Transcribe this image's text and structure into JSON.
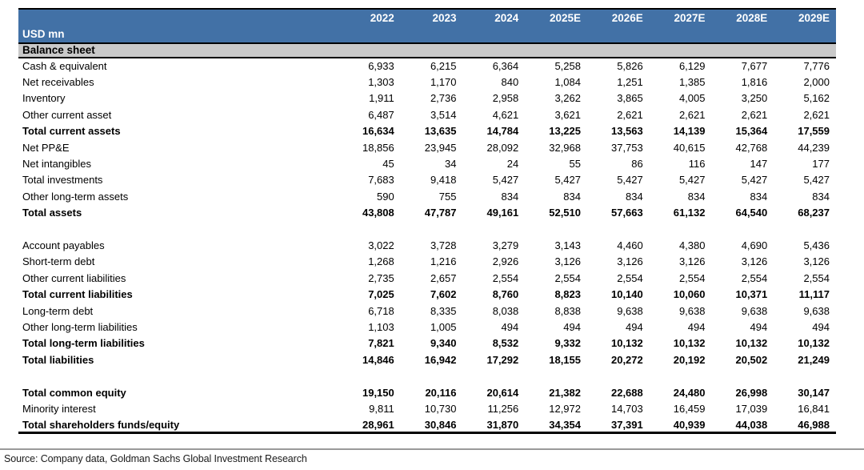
{
  "table": {
    "unit_label": "USD mn",
    "columns": [
      "2022",
      "2023",
      "2024",
      "2025E",
      "2026E",
      "2027E",
      "2028E",
      "2029E"
    ],
    "section_header": "Balance sheet",
    "rows": [
      {
        "label": "Cash & equivalent",
        "bold": false,
        "values": [
          "6,933",
          "6,215",
          "6,364",
          "5,258",
          "5,826",
          "6,129",
          "7,677",
          "7,776"
        ]
      },
      {
        "label": "Net receivables",
        "bold": false,
        "values": [
          "1,303",
          "1,170",
          "840",
          "1,084",
          "1,251",
          "1,385",
          "1,816",
          "2,000"
        ]
      },
      {
        "label": "Inventory",
        "bold": false,
        "values": [
          "1,911",
          "2,736",
          "2,958",
          "3,262",
          "3,865",
          "4,005",
          "3,250",
          "5,162"
        ]
      },
      {
        "label": "Other current asset",
        "bold": false,
        "values": [
          "6,487",
          "3,514",
          "4,621",
          "3,621",
          "2,621",
          "2,621",
          "2,621",
          "2,621"
        ]
      },
      {
        "label": "Total current assets",
        "bold": true,
        "values": [
          "16,634",
          "13,635",
          "14,784",
          "13,225",
          "13,563",
          "14,139",
          "15,364",
          "17,559"
        ]
      },
      {
        "label": "Net PP&E",
        "bold": false,
        "values": [
          "18,856",
          "23,945",
          "28,092",
          "32,968",
          "37,753",
          "40,615",
          "42,768",
          "44,239"
        ]
      },
      {
        "label": "Net intangibles",
        "bold": false,
        "values": [
          "45",
          "34",
          "24",
          "55",
          "86",
          "116",
          "147",
          "177"
        ]
      },
      {
        "label": "Total investments",
        "bold": false,
        "values": [
          "7,683",
          "9,418",
          "5,427",
          "5,427",
          "5,427",
          "5,427",
          "5,427",
          "5,427"
        ]
      },
      {
        "label": "Other long-term assets",
        "bold": false,
        "values": [
          "590",
          "755",
          "834",
          "834",
          "834",
          "834",
          "834",
          "834"
        ]
      },
      {
        "label": "Total assets",
        "bold": true,
        "values": [
          "43,808",
          "47,787",
          "49,161",
          "52,510",
          "57,663",
          "61,132",
          "64,540",
          "68,237"
        ]
      },
      {
        "label": "",
        "blank": true,
        "bold": false,
        "values": [
          "",
          "",
          "",
          "",
          "",
          "",
          "",
          ""
        ]
      },
      {
        "label": "Account payables",
        "bold": false,
        "values": [
          "3,022",
          "3,728",
          "3,279",
          "3,143",
          "4,460",
          "4,380",
          "4,690",
          "5,436"
        ]
      },
      {
        "label": "Short-term debt",
        "bold": false,
        "values": [
          "1,268",
          "1,216",
          "2,926",
          "3,126",
          "3,126",
          "3,126",
          "3,126",
          "3,126"
        ]
      },
      {
        "label": "Other current liabilities",
        "bold": false,
        "values": [
          "2,735",
          "2,657",
          "2,554",
          "2,554",
          "2,554",
          "2,554",
          "2,554",
          "2,554"
        ]
      },
      {
        "label": "Total current liabilities",
        "bold": true,
        "values": [
          "7,025",
          "7,602",
          "8,760",
          "8,823",
          "10,140",
          "10,060",
          "10,371",
          "11,117"
        ]
      },
      {
        "label": "Long-term debt",
        "bold": false,
        "values": [
          "6,718",
          "8,335",
          "8,038",
          "8,838",
          "9,638",
          "9,638",
          "9,638",
          "9,638"
        ]
      },
      {
        "label": "Other long-term liabilities",
        "bold": false,
        "values": [
          "1,103",
          "1,005",
          "494",
          "494",
          "494",
          "494",
          "494",
          "494"
        ]
      },
      {
        "label": "Total long-term liabilities",
        "bold": true,
        "values": [
          "7,821",
          "9,340",
          "8,532",
          "9,332",
          "10,132",
          "10,132",
          "10,132",
          "10,132"
        ]
      },
      {
        "label": "Total liabilities",
        "bold": true,
        "values": [
          "14,846",
          "16,942",
          "17,292",
          "18,155",
          "20,272",
          "20,192",
          "20,502",
          "21,249"
        ]
      },
      {
        "label": "",
        "blank": true,
        "bold": false,
        "values": [
          "",
          "",
          "",
          "",
          "",
          "",
          "",
          ""
        ]
      },
      {
        "label": "Total common equity",
        "bold": true,
        "values": [
          "19,150",
          "20,116",
          "20,614",
          "21,382",
          "22,688",
          "24,480",
          "26,998",
          "30,147"
        ]
      },
      {
        "label": "Minority interest",
        "bold": false,
        "values": [
          "9,811",
          "10,730",
          "11,256",
          "12,972",
          "14,703",
          "16,459",
          "17,039",
          "16,841"
        ]
      },
      {
        "label": "Total shareholders funds/equity",
        "bold": true,
        "values": [
          "28,961",
          "30,846",
          "31,870",
          "34,354",
          "37,391",
          "40,939",
          "44,038",
          "46,988"
        ]
      }
    ]
  },
  "footer": {
    "source_text": "Source: Company data, Goldman Sachs Global Investment Research"
  },
  "colors": {
    "header_bg": "#4271A6",
    "header_text": "#FFFFFF",
    "section_bg": "#C9C9C9",
    "border_black": "#000000",
    "rule_gray": "#9A9A9A"
  }
}
